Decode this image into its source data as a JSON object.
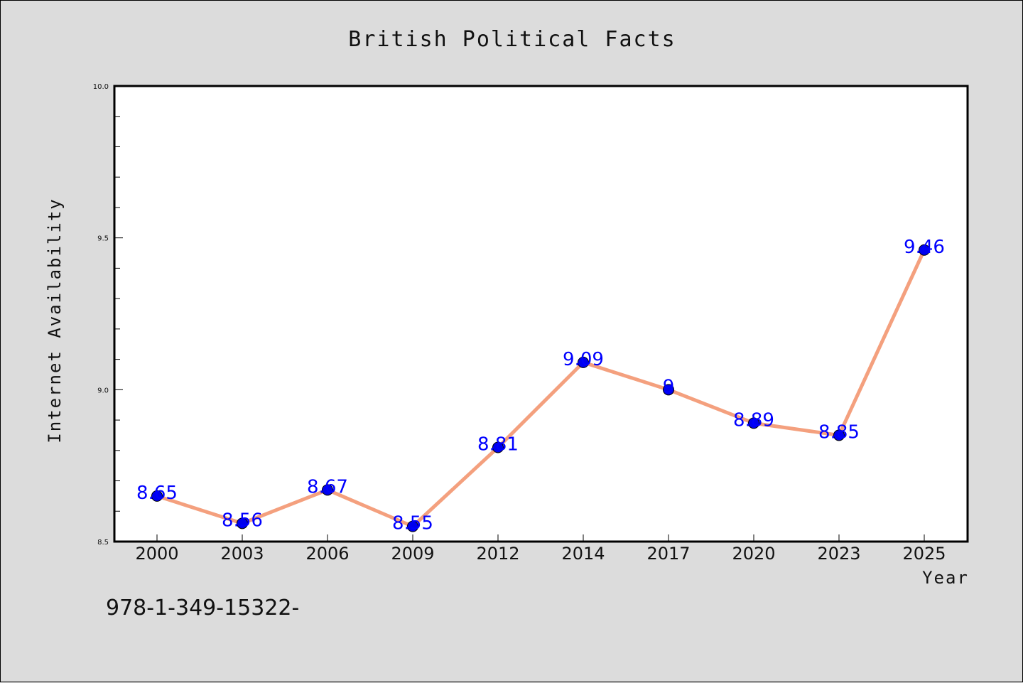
{
  "chart_data": {
    "type": "line",
    "title": "British Political Facts",
    "xlabel": "Year",
    "ylabel": "Internet Availability",
    "categories": [
      "2000",
      "2003",
      "2006",
      "2009",
      "2012",
      "2014",
      "2017",
      "2020",
      "2023",
      "2025"
    ],
    "values": [
      8.65,
      8.56,
      8.67,
      8.55,
      8.81,
      9.09,
      9.0,
      8.89,
      8.85,
      9.46
    ],
    "data_labels": [
      "8.65",
      "8.56",
      "8.67",
      "8.55",
      "8.81",
      "9.09",
      "9",
      "8.89",
      "8.85",
      "9.46"
    ],
    "ylim": [
      8.5,
      10.0
    ],
    "yticks": [
      "8.5",
      "9.0",
      "9.5",
      "10.0"
    ],
    "grid": false,
    "colors": {
      "line": "#f4a07e",
      "marker": "#0000ee",
      "label": "#0000ff",
      "plot_background": "#ffffff",
      "figure_background": "#dcdcdc"
    }
  },
  "footnote": "978-1-349-15322-"
}
